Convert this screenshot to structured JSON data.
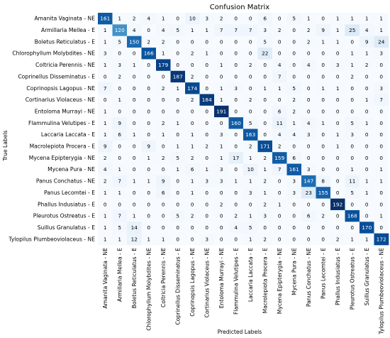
{
  "chart_data": {
    "type": "heatmap",
    "title": "Confusion Matrix",
    "xlabel": "Predicted Labels",
    "ylabel": "True Labels",
    "labels": [
      "Amanita Vaginata - NE",
      "Armillaria Mellea - E",
      "Boletus Reticulatus - E",
      "Chlorophyllum Molybdites - NE",
      "Coltricia Perennis - NE",
      "Coprinellus Disseminatus - E",
      "Coprinopsis Lagopus - NE",
      "Cortinarius Violaceus - NE",
      "Entoloma Murrayi - NE",
      "Flammulina Velutipes - E",
      "Laccaria Laccata - E",
      "Macrolepiota Procera - E",
      "Mycena Epipterygia - NE",
      "Mycena Pura - NE",
      "Panus Conchatus - NE",
      "Panus Lecomtei - E",
      "Phallus Indusiatus - E",
      "Pleurotus Ostreatus - E",
      "Suillus Granulatus - E",
      "Tylopilus Plumbeoviolaceus - NE"
    ],
    "matrix": [
      [
        161,
        1,
        2,
        4,
        1,
        0,
        10,
        3,
        2,
        0,
        0,
        6,
        0,
        5,
        1,
        0,
        1,
        1,
        1,
        1
      ],
      [
        1,
        120,
        4,
        0,
        4,
        5,
        1,
        1,
        7,
        7,
        7,
        3,
        2,
        0,
        2,
        9,
        1,
        25,
        4,
        1
      ],
      [
        1,
        5,
        150,
        2,
        2,
        0,
        0,
        0,
        0,
        0,
        0,
        5,
        0,
        0,
        2,
        1,
        1,
        0,
        9,
        24
      ],
      [
        3,
        0,
        0,
        166,
        1,
        0,
        2,
        1,
        0,
        0,
        0,
        22,
        0,
        0,
        0,
        0,
        0,
        1,
        1,
        3
      ],
      [
        1,
        3,
        1,
        0,
        179,
        0,
        0,
        0,
        1,
        0,
        2,
        0,
        4,
        0,
        4,
        0,
        3,
        1,
        2,
        0
      ],
      [
        0,
        2,
        0,
        0,
        0,
        187,
        2,
        0,
        0,
        0,
        0,
        0,
        7,
        0,
        0,
        0,
        0,
        2,
        0,
        0
      ],
      [
        7,
        0,
        0,
        0,
        2,
        1,
        174,
        0,
        1,
        3,
        0,
        1,
        1,
        5,
        0,
        1,
        1,
        0,
        0,
        3
      ],
      [
        0,
        1,
        0,
        0,
        0,
        0,
        2,
        184,
        1,
        0,
        2,
        0,
        0,
        2,
        0,
        0,
        0,
        0,
        1,
        7
      ],
      [
        1,
        0,
        0,
        0,
        0,
        0,
        0,
        0,
        191,
        0,
        0,
        0,
        6,
        2,
        0,
        0,
        0,
        0,
        0,
        0
      ],
      [
        1,
        9,
        0,
        0,
        2,
        1,
        0,
        0,
        0,
        160,
        5,
        0,
        11,
        1,
        4,
        1,
        0,
        5,
        1,
        0
      ],
      [
        1,
        6,
        1,
        0,
        1,
        0,
        1,
        0,
        3,
        0,
        163,
        0,
        4,
        4,
        3,
        0,
        1,
        3,
        0,
        0
      ],
      [
        9,
        0,
        0,
        9,
        0,
        1,
        1,
        2,
        1,
        0,
        2,
        171,
        2,
        0,
        0,
        0,
        1,
        0,
        0,
        0
      ],
      [
        2,
        0,
        0,
        1,
        2,
        5,
        2,
        0,
        1,
        17,
        1,
        2,
        159,
        6,
        0,
        0,
        0,
        0,
        0,
        0
      ],
      [
        4,
        1,
        0,
        0,
        0,
        1,
        6,
        1,
        3,
        0,
        10,
        1,
        7,
        161,
        3,
        0,
        0,
        1,
        0,
        1
      ],
      [
        2,
        7,
        1,
        1,
        9,
        0,
        1,
        3,
        3,
        1,
        1,
        2,
        0,
        3,
        147,
        8,
        0,
        11,
        1,
        1
      ],
      [
        1,
        1,
        0,
        0,
        6,
        0,
        1,
        0,
        0,
        0,
        3,
        1,
        0,
        3,
        23,
        155,
        0,
        5,
        1,
        0
      ],
      [
        0,
        0,
        0,
        0,
        0,
        0,
        0,
        0,
        2,
        0,
        0,
        2,
        1,
        0,
        0,
        0,
        192,
        0,
        0,
        0
      ],
      [
        1,
        7,
        1,
        0,
        0,
        5,
        2,
        0,
        0,
        2,
        1,
        3,
        0,
        0,
        6,
        2,
        0,
        168,
        0,
        1
      ],
      [
        1,
        5,
        14,
        0,
        0,
        0,
        0,
        0,
        0,
        4,
        5,
        0,
        0,
        0,
        0,
        0,
        0,
        0,
        170,
        0
      ],
      [
        1,
        1,
        12,
        1,
        1,
        0,
        0,
        3,
        0,
        0,
        1,
        2,
        0,
        0,
        0,
        0,
        2,
        1,
        1,
        172
      ]
    ],
    "colormap": [
      "#f7fbff",
      "#deebf7",
      "#c6dbef",
      "#9ecae1",
      "#6baed6",
      "#4292c6",
      "#2171b5",
      "#08519c",
      "#08306b"
    ],
    "value_range": [
      0,
      192
    ]
  }
}
